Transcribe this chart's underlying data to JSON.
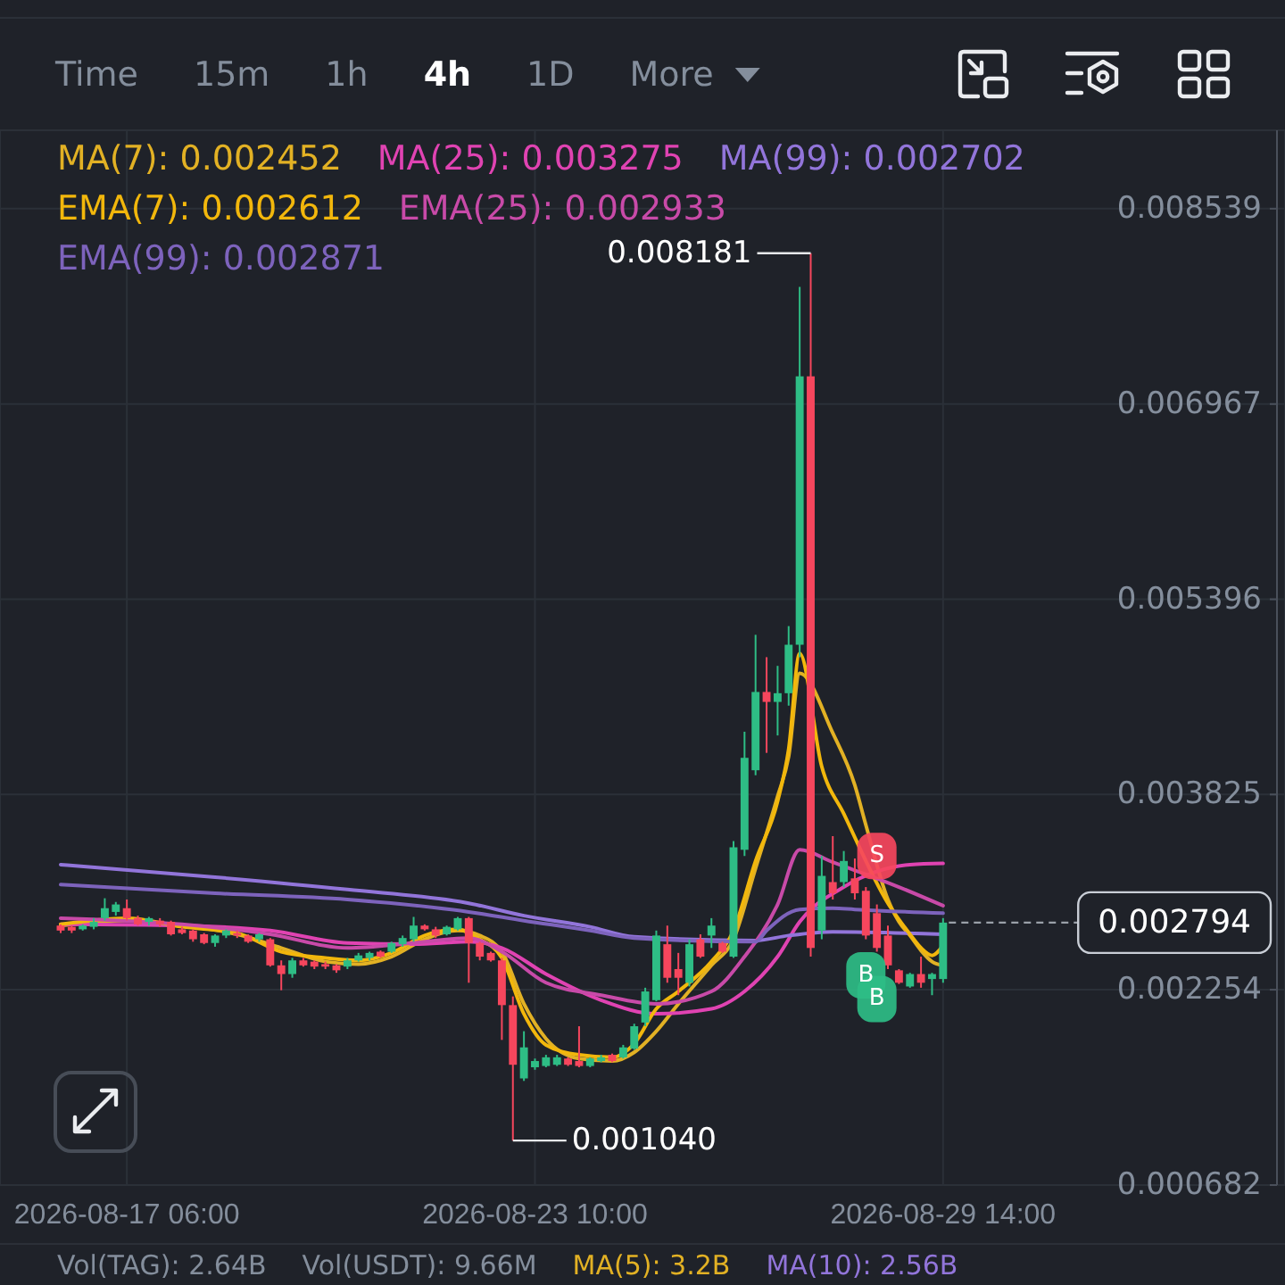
{
  "chart_data": {
    "type": "candlestick",
    "x": [
      "2026-08-16T06:00",
      "2026-08-16T10:00",
      "2026-08-16T14:00",
      "2026-08-16T18:00",
      "2026-08-16T22:00",
      "2026-08-17T02:00",
      "2026-08-17T06:00",
      "2026-08-17T10:00",
      "2026-08-17T14:00",
      "2026-08-17T18:00",
      "2026-08-17T22:00",
      "2026-08-18T02:00",
      "2026-08-18T06:00",
      "2026-08-18T10:00",
      "2026-08-18T14:00",
      "2026-08-18T18:00",
      "2026-08-18T22:00",
      "2026-08-19T02:00",
      "2026-08-19T06:00",
      "2026-08-19T10:00",
      "2026-08-19T14:00",
      "2026-08-19T18:00",
      "2026-08-19T22:00",
      "2026-08-20T02:00",
      "2026-08-20T06:00",
      "2026-08-20T10:00",
      "2026-08-20T14:00",
      "2026-08-20T18:00",
      "2026-08-20T22:00",
      "2026-08-21T02:00",
      "2026-08-21T06:00",
      "2026-08-21T10:00",
      "2026-08-21T14:00",
      "2026-08-21T18:00",
      "2026-08-21T22:00",
      "2026-08-22T02:00",
      "2026-08-22T06:00",
      "2026-08-22T10:00",
      "2026-08-22T14:00",
      "2026-08-22T18:00",
      "2026-08-22T22:00",
      "2026-08-23T02:00",
      "2026-08-23T06:00",
      "2026-08-23T10:00",
      "2026-08-23T14:00",
      "2026-08-23T18:00",
      "2026-08-23T22:00",
      "2026-08-24T02:00",
      "2026-08-24T06:00",
      "2026-08-24T10:00",
      "2026-08-24T14:00",
      "2026-08-24T18:00",
      "2026-08-24T22:00",
      "2026-08-25T02:00",
      "2026-08-25T06:00",
      "2026-08-25T10:00",
      "2026-08-25T14:00",
      "2026-08-25T18:00",
      "2026-08-25T22:00",
      "2026-08-26T02:00",
      "2026-08-26T06:00",
      "2026-08-26T10:00",
      "2026-08-26T14:00",
      "2026-08-26T18:00",
      "2026-08-26T22:00",
      "2026-08-27T02:00",
      "2026-08-27T06:00",
      "2026-08-27T10:00",
      "2026-08-27T14:00",
      "2026-08-27T18:00",
      "2026-08-27T22:00",
      "2026-08-28T02:00",
      "2026-08-28T06:00",
      "2026-08-28T10:00",
      "2026-08-28T14:00",
      "2026-08-28T18:00",
      "2026-08-28T22:00",
      "2026-08-29T02:00",
      "2026-08-29T06:00",
      "2026-08-29T10:00",
      "2026-08-29T14:00"
    ],
    "ohlc": [
      [
        0.00277,
        0.00278,
        0.00271,
        0.00273
      ],
      [
        0.00276,
        0.00277,
        0.00271,
        0.00273
      ],
      [
        0.00274,
        0.00278,
        0.00273,
        0.00277
      ],
      [
        0.00276,
        0.00283,
        0.00274,
        0.0028
      ],
      [
        0.00283,
        0.00299,
        0.00281,
        0.00291
      ],
      [
        0.00288,
        0.00296,
        0.00285,
        0.00294
      ],
      [
        0.00291,
        0.00298,
        0.00281,
        0.00283
      ],
      [
        0.00283,
        0.00285,
        0.00277,
        0.00278
      ],
      [
        0.0028,
        0.00284,
        0.00277,
        0.00283
      ],
      [
        0.00281,
        0.00283,
        0.00276,
        0.00278
      ],
      [
        0.0028,
        0.00281,
        0.00269,
        0.0027
      ],
      [
        0.00274,
        0.00276,
        0.0027,
        0.00271
      ],
      [
        0.00273,
        0.00274,
        0.00264,
        0.00266
      ],
      [
        0.0027,
        0.00271,
        0.00262,
        0.00263
      ],
      [
        0.00263,
        0.0027,
        0.0026,
        0.00269
      ],
      [
        0.00269,
        0.00274,
        0.00267,
        0.00273
      ],
      [
        0.00271,
        0.00273,
        0.00267,
        0.00269
      ],
      [
        0.00269,
        0.0027,
        0.00263,
        0.00264
      ],
      [
        0.00266,
        0.00271,
        0.00264,
        0.0027
      ],
      [
        0.00266,
        0.00267,
        0.00244,
        0.00245
      ],
      [
        0.00245,
        0.00249,
        0.00225,
        0.00238
      ],
      [
        0.00238,
        0.00251,
        0.00235,
        0.00249
      ],
      [
        0.00249,
        0.00251,
        0.00244,
        0.00245
      ],
      [
        0.00248,
        0.00249,
        0.00242,
        0.00244
      ],
      [
        0.00246,
        0.00248,
        0.00242,
        0.00244
      ],
      [
        0.00245,
        0.00246,
        0.00239,
        0.00241
      ],
      [
        0.00244,
        0.00251,
        0.00242,
        0.00249
      ],
      [
        0.00249,
        0.00255,
        0.00248,
        0.00253
      ],
      [
        0.00251,
        0.00256,
        0.00249,
        0.00255
      ],
      [
        0.00256,
        0.00257,
        0.00251,
        0.00252
      ],
      [
        0.00256,
        0.00264,
        0.00255,
        0.00263
      ],
      [
        0.00262,
        0.00269,
        0.0026,
        0.00267
      ],
      [
        0.00266,
        0.00284,
        0.00264,
        0.00277
      ],
      [
        0.00277,
        0.00278,
        0.00273,
        0.00274
      ],
      [
        0.00274,
        0.00276,
        0.00267,
        0.00269
      ],
      [
        0.0027,
        0.00277,
        0.00269,
        0.00276
      ],
      [
        0.00274,
        0.00284,
        0.00273,
        0.00283
      ],
      [
        0.00283,
        0.00284,
        0.00231,
        0.00263
      ],
      [
        0.00263,
        0.00264,
        0.00249,
        0.00252
      ],
      [
        0.00255,
        0.00256,
        0.00248,
        0.00249
      ],
      [
        0.00249,
        0.00251,
        0.00185,
        0.00213
      ],
      [
        0.00213,
        0.0022,
        0.00104,
        0.00165
      ],
      [
        0.00154,
        0.00192,
        0.00152,
        0.00179
      ],
      [
        0.00163,
        0.0017,
        0.00161,
        0.00168
      ],
      [
        0.00164,
        0.00173,
        0.00163,
        0.00171
      ],
      [
        0.00165,
        0.00173,
        0.00164,
        0.00171
      ],
      [
        0.0017,
        0.00171,
        0.00164,
        0.00165
      ],
      [
        0.00168,
        0.00196,
        0.00163,
        0.00164
      ],
      [
        0.00164,
        0.00171,
        0.00163,
        0.0017
      ],
      [
        0.00168,
        0.00173,
        0.00167,
        0.00171
      ],
      [
        0.00173,
        0.00174,
        0.00167,
        0.00168
      ],
      [
        0.00171,
        0.00181,
        0.0017,
        0.00179
      ],
      [
        0.00178,
        0.00198,
        0.00177,
        0.00196
      ],
      [
        0.00199,
        0.00227,
        0.00196,
        0.00224
      ],
      [
        0.00217,
        0.00273,
        0.00216,
        0.00269
      ],
      [
        0.00262,
        0.00277,
        0.00231,
        0.00235
      ],
      [
        0.00242,
        0.00255,
        0.00221,
        0.00235
      ],
      [
        0.00231,
        0.00266,
        0.00228,
        0.00262
      ],
      [
        0.00266,
        0.0027,
        0.00251,
        0.00252
      ],
      [
        0.00269,
        0.00283,
        0.00259,
        0.00277
      ],
      [
        0.00263,
        0.00264,
        0.00255,
        0.00256
      ],
      [
        0.00252,
        0.00345,
        0.00251,
        0.0034
      ],
      [
        0.00338,
        0.00433,
        0.00333,
        0.00412
      ],
      [
        0.00402,
        0.00511,
        0.00398,
        0.00465
      ],
      [
        0.00465,
        0.00493,
        0.00416,
        0.00457
      ],
      [
        0.00457,
        0.00486,
        0.0043,
        0.00464
      ],
      [
        0.00464,
        0.00518,
        0.00454,
        0.00503
      ],
      [
        0.00503,
        0.00791,
        0.00493,
        0.00719
      ],
      [
        0.00719,
        0.008181,
        0.00252,
        0.00259
      ],
      [
        0.00273,
        0.00333,
        0.00266,
        0.00317
      ],
      [
        0.00312,
        0.00349,
        0.00298,
        0.00303
      ],
      [
        0.00312,
        0.00337,
        0.00308,
        0.00329
      ],
      [
        0.00315,
        0.00331,
        0.00298,
        0.00303
      ],
      [
        0.00305,
        0.00308,
        0.00266,
        0.00269
      ],
      [
        0.00287,
        0.00294,
        0.00256,
        0.00259
      ],
      [
        0.00269,
        0.00277,
        0.00242,
        0.00245
      ],
      [
        0.00241,
        0.00242,
        0.0023,
        0.00231
      ],
      [
        0.00228,
        0.00239,
        0.00227,
        0.00238
      ],
      [
        0.00238,
        0.00252,
        0.00227,
        0.00231
      ],
      [
        0.00234,
        0.00239,
        0.00221,
        0.00238
      ],
      [
        0.00234,
        0.00283,
        0.00231,
        0.002794
      ]
    ],
    "series": [
      {
        "name": "MA(7): 0.002452",
        "type": "line",
        "color": "#e2b124",
        "x": [
          "2026-08-16T06:00",
          "2026-08-17T06:00",
          "2026-08-18T02:00",
          "2026-08-18T22:00",
          "2026-08-19T14:00",
          "2026-08-20T06:00",
          "2026-08-20T18:00",
          "2026-08-21T06:00",
          "2026-08-21T18:00",
          "2026-08-22T06:00",
          "2026-08-22T14:00",
          "2026-08-22T22:00",
          "2026-08-23T06:00",
          "2026-08-23T14:00",
          "2026-08-24T02:00",
          "2026-08-24T14:00",
          "2026-08-24T22:00",
          "2026-08-25T06:00",
          "2026-08-25T14:00",
          "2026-08-26T02:00",
          "2026-08-26T10:00",
          "2026-08-26T18:00",
          "2026-08-27T02:00",
          "2026-08-27T06:00",
          "2026-08-27T10:00",
          "2026-08-27T22:00",
          "2026-08-28T06:00",
          "2026-08-28T10:00",
          "2026-08-28T18:00",
          "2026-08-28T22:00",
          "2026-08-29T02:00",
          "2026-08-29T06:00",
          "2026-08-29T10:00",
          "2026-08-29T14:00"
        ],
        "values": [
          0.00277,
          0.00281,
          0.00277,
          0.0027,
          0.00259,
          0.00248,
          0.00246,
          0.00252,
          0.00266,
          0.00273,
          0.00269,
          0.00256,
          0.00214,
          0.00186,
          0.0017,
          0.00168,
          0.00175,
          0.00192,
          0.00214,
          0.00245,
          0.00266,
          0.00323,
          0.00381,
          0.00413,
          0.0048,
          0.00432,
          0.0039,
          0.00358,
          0.00298,
          0.0028,
          0.00269,
          0.00257,
          0.00248,
          0.00245
        ]
      },
      {
        "name": "MA(25): 0.003275",
        "type": "line",
        "color": "#e043b2",
        "x": [
          "2026-08-16T06:00",
          "2026-08-18T02:00",
          "2026-08-19T10:00",
          "2026-08-20T14:00",
          "2026-08-21T14:00",
          "2026-08-22T10:00",
          "2026-08-22T22:00",
          "2026-08-23T14:00",
          "2026-08-24T10:00",
          "2026-08-25T06:00",
          "2026-08-26T02:00",
          "2026-08-26T14:00",
          "2026-08-27T02:00",
          "2026-08-27T10:00",
          "2026-08-28T02:00",
          "2026-08-29T02:00",
          "2026-08-29T14:00"
        ],
        "values": [
          0.00278,
          0.00277,
          0.00273,
          0.00263,
          0.00262,
          0.00264,
          0.00259,
          0.00238,
          0.00217,
          0.00206,
          0.0021,
          0.00224,
          0.00252,
          0.0028,
          0.00308,
          0.00326,
          0.00327
        ]
      },
      {
        "name": "MA(99): 0.002702",
        "type": "line",
        "color": "#9275da",
        "x": [
          "2026-08-16T06:00",
          "2026-08-18T14:00",
          "2026-08-20T14:00",
          "2026-08-22T10:00",
          "2026-08-23T06:00",
          "2026-08-24T06:00",
          "2026-08-24T22:00",
          "2026-08-26T18:00",
          "2026-08-27T06:00",
          "2026-08-27T22:00",
          "2026-08-29T14:00"
        ],
        "values": [
          0.00326,
          0.00316,
          0.00306,
          0.00295,
          0.00285,
          0.00276,
          0.00268,
          0.00265,
          0.00269,
          0.00272,
          0.0027
        ]
      },
      {
        "name": "EMA(7): 0.002612",
        "type": "line",
        "color": "#f2b70c",
        "x": [
          "2026-08-16T06:00",
          "2026-08-17T06:00",
          "2026-08-18T02:00",
          "2026-08-18T22:00",
          "2026-08-19T14:00",
          "2026-08-20T06:00",
          "2026-08-20T18:00",
          "2026-08-21T06:00",
          "2026-08-21T18:00",
          "2026-08-22T06:00",
          "2026-08-22T14:00",
          "2026-08-22T22:00",
          "2026-08-23T06:00",
          "2026-08-23T14:00",
          "2026-08-24T02:00",
          "2026-08-24T14:00",
          "2026-08-24T22:00",
          "2026-08-25T06:00",
          "2026-08-25T14:00",
          "2026-08-26T02:00",
          "2026-08-26T10:00",
          "2026-08-26T18:00",
          "2026-08-27T02:00",
          "2026-08-27T06:00",
          "2026-08-27T10:00",
          "2026-08-27T18:00",
          "2026-08-28T02:00",
          "2026-08-28T18:00",
          "2026-08-29T02:00",
          "2026-08-29T06:00",
          "2026-08-29T10:00",
          "2026-08-29T14:00"
        ],
        "values": [
          0.00278,
          0.00283,
          0.00276,
          0.00271,
          0.00256,
          0.00251,
          0.00249,
          0.00255,
          0.00269,
          0.00274,
          0.00266,
          0.00251,
          0.00206,
          0.00181,
          0.00173,
          0.00171,
          0.00182,
          0.0021,
          0.00224,
          0.00248,
          0.00273,
          0.00329,
          0.00377,
          0.00419,
          0.00496,
          0.00405,
          0.00367,
          0.00295,
          0.0027,
          0.00259,
          0.00253,
          0.00261
        ]
      },
      {
        "name": "EMA(25): 0.002933",
        "type": "line",
        "color": "#c84aa8",
        "x": [
          "2026-08-16T06:00",
          "2026-08-18T02:00",
          "2026-08-19T10:00",
          "2026-08-20T14:00",
          "2026-08-21T14:00",
          "2026-08-22T10:00",
          "2026-08-22T22:00",
          "2026-08-23T14:00",
          "2026-08-24T10:00",
          "2026-08-25T06:00",
          "2026-08-26T02:00",
          "2026-08-26T14:00",
          "2026-08-27T02:00",
          "2026-08-27T10:00",
          "2026-08-27T22:00",
          "2026-08-28T22:00",
          "2026-08-29T14:00"
        ],
        "values": [
          0.00283,
          0.00278,
          0.0027,
          0.00259,
          0.00263,
          0.00267,
          0.00256,
          0.00231,
          0.00221,
          0.00214,
          0.00224,
          0.00252,
          0.00294,
          0.00338,
          0.00328,
          0.00308,
          0.00293
        ]
      },
      {
        "name": "EMA(99): 0.002871",
        "type": "line",
        "color": "#7d63bc",
        "x": [
          "2026-08-16T06:00",
          "2026-08-18T14:00",
          "2026-08-20T14:00",
          "2026-08-22T10:00",
          "2026-08-23T06:00",
          "2026-08-24T06:00",
          "2026-08-24T22:00",
          "2026-08-26T18:00",
          "2026-08-26T22:00",
          "2026-08-27T10:00",
          "2026-08-27T22:00",
          "2026-08-28T06:00",
          "2026-08-29T14:00"
        ],
        "values": [
          0.0031,
          0.00303,
          0.00298,
          0.00288,
          0.00281,
          0.00273,
          0.00267,
          0.00264,
          0.00273,
          0.0029,
          0.00291,
          0.0029,
          0.00287
        ]
      }
    ],
    "xlim": [
      "2026-08-15T08:00",
      "2026-09-03T18:00"
    ],
    "ylim": [
      0.000682,
      0.00917
    ],
    "xticks": [
      {
        "value": "2026-08-17T06:00",
        "label": "2026-08-17 06:00"
      },
      {
        "value": "2026-08-23T10:00",
        "label": "2026-08-23 10:00"
      },
      {
        "value": "2026-08-29T14:00",
        "label": "2026-08-29 14:00"
      }
    ],
    "yticks": [
      0.000682,
      0.002254,
      0.003825,
      0.005396,
      0.006967,
      0.008539
    ],
    "grid": true,
    "legend": "top left",
    "ref_lines": [
      {
        "axis": "y",
        "value": 0.002794,
        "label": "0.002794",
        "line_style": "dashed"
      }
    ],
    "annotations": [
      "Time",
      "15m",
      "1h",
      "4h",
      "1D",
      "More",
      {
        "text": "0.008181",
        "x": "2026-08-27T14:00",
        "y": 0.008181
      },
      {
        "text": "0.001040",
        "x": "2026-08-23T02:00",
        "y": 0.00104
      },
      {
        "text": "S",
        "x": "2026-08-28T14:00",
        "y": 0.00333
      },
      {
        "text": "B",
        "x": "2026-08-28T10:00",
        "y": 0.00237
      },
      {
        "text": "B",
        "x": "2026-08-28T14:00",
        "y": 0.00218
      },
      "Vol(TAG): 2.64B",
      "Vol(USDT): 9.66M",
      "MA(5): 3.2B",
      "MA(10): 2.56B"
    ]
  }
}
